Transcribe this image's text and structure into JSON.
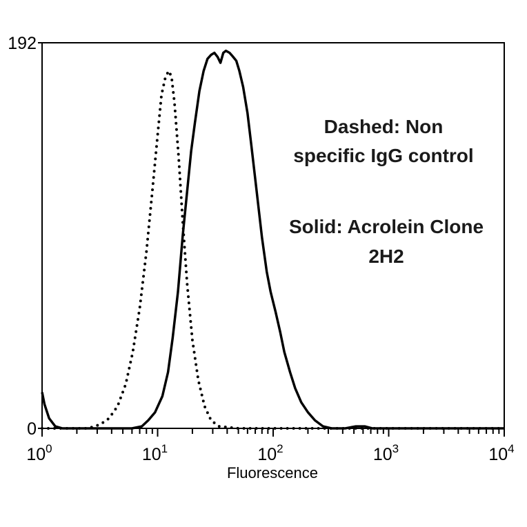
{
  "chart_data": {
    "type": "line",
    "xlabel": "Fluorescence",
    "x_scale": "log",
    "xlim": [
      1,
      10000
    ],
    "ylim": [
      0,
      192
    ],
    "x_ticks": [
      {
        "base": "10",
        "exp": "0",
        "value": 1
      },
      {
        "base": "10",
        "exp": "1",
        "value": 10
      },
      {
        "base": "10",
        "exp": "2",
        "value": 100
      },
      {
        "base": "10",
        "exp": "3",
        "value": 1000
      },
      {
        "base": "10",
        "exp": "4",
        "value": 10000
      }
    ],
    "y_ticks": [
      {
        "label": "0",
        "value": 0
      },
      {
        "label": "192",
        "value": 192
      }
    ],
    "annotations": [
      {
        "lines": [
          "Dashed: Non",
          "specific IgG control"
        ]
      },
      {
        "lines": [
          "Solid: Acrolein Clone",
          "2H2"
        ]
      }
    ],
    "series": [
      {
        "style": "dotted",
        "color": "#000000",
        "points": [
          [
            1,
            0
          ],
          [
            2.5,
            0
          ],
          [
            3.2,
            2
          ],
          [
            3.8,
            5
          ],
          [
            4.5,
            11
          ],
          [
            5.3,
            22
          ],
          [
            6.1,
            38
          ],
          [
            7,
            60
          ],
          [
            8,
            88
          ],
          [
            9,
            118
          ],
          [
            10,
            146
          ],
          [
            10.8,
            166
          ],
          [
            11.7,
            175
          ],
          [
            12.5,
            178
          ],
          [
            13.2,
            175
          ],
          [
            14,
            162
          ],
          [
            15.2,
            135
          ],
          [
            16.5,
            103
          ],
          [
            18,
            72
          ],
          [
            20,
            44
          ],
          [
            22.5,
            24
          ],
          [
            25.5,
            11
          ],
          [
            29,
            4
          ],
          [
            34,
            1
          ],
          [
            50,
            0
          ],
          [
            100,
            0
          ],
          [
            300,
            0
          ],
          [
            1000,
            0
          ],
          [
            10000,
            0
          ]
        ]
      },
      {
        "style": "solid",
        "color": "#000000",
        "points": [
          [
            1,
            18
          ],
          [
            1.05,
            12
          ],
          [
            1.15,
            5
          ],
          [
            1.3,
            1
          ],
          [
            1.5,
            0
          ],
          [
            3,
            0
          ],
          [
            6,
            0
          ],
          [
            7.3,
            1
          ],
          [
            8.3,
            4
          ],
          [
            9.5,
            8
          ],
          [
            11,
            16
          ],
          [
            12.3,
            28
          ],
          [
            13.5,
            45
          ],
          [
            15,
            68
          ],
          [
            16.5,
            96
          ],
          [
            18,
            118
          ],
          [
            19.5,
            138
          ],
          [
            21,
            152
          ],
          [
            23,
            168
          ],
          [
            25,
            178
          ],
          [
            27,
            184
          ],
          [
            29,
            186
          ],
          [
            31,
            187
          ],
          [
            33,
            185
          ],
          [
            35,
            182
          ],
          [
            37,
            187
          ],
          [
            39,
            188
          ],
          [
            42,
            187
          ],
          [
            45,
            185
          ],
          [
            48,
            183
          ],
          [
            51,
            178
          ],
          [
            55,
            170
          ],
          [
            60,
            157
          ],
          [
            65,
            140
          ],
          [
            72,
            118
          ],
          [
            80,
            95
          ],
          [
            88,
            78
          ],
          [
            95,
            68
          ],
          [
            105,
            58
          ],
          [
            115,
            48
          ],
          [
            125,
            38
          ],
          [
            140,
            28
          ],
          [
            155,
            20
          ],
          [
            175,
            13
          ],
          [
            200,
            8
          ],
          [
            230,
            4
          ],
          [
            270,
            1
          ],
          [
            320,
            0
          ],
          [
            420,
            0
          ],
          [
            520,
            1
          ],
          [
            620,
            1
          ],
          [
            720,
            0
          ],
          [
            1000,
            0
          ],
          [
            10000,
            0
          ]
        ]
      }
    ]
  }
}
